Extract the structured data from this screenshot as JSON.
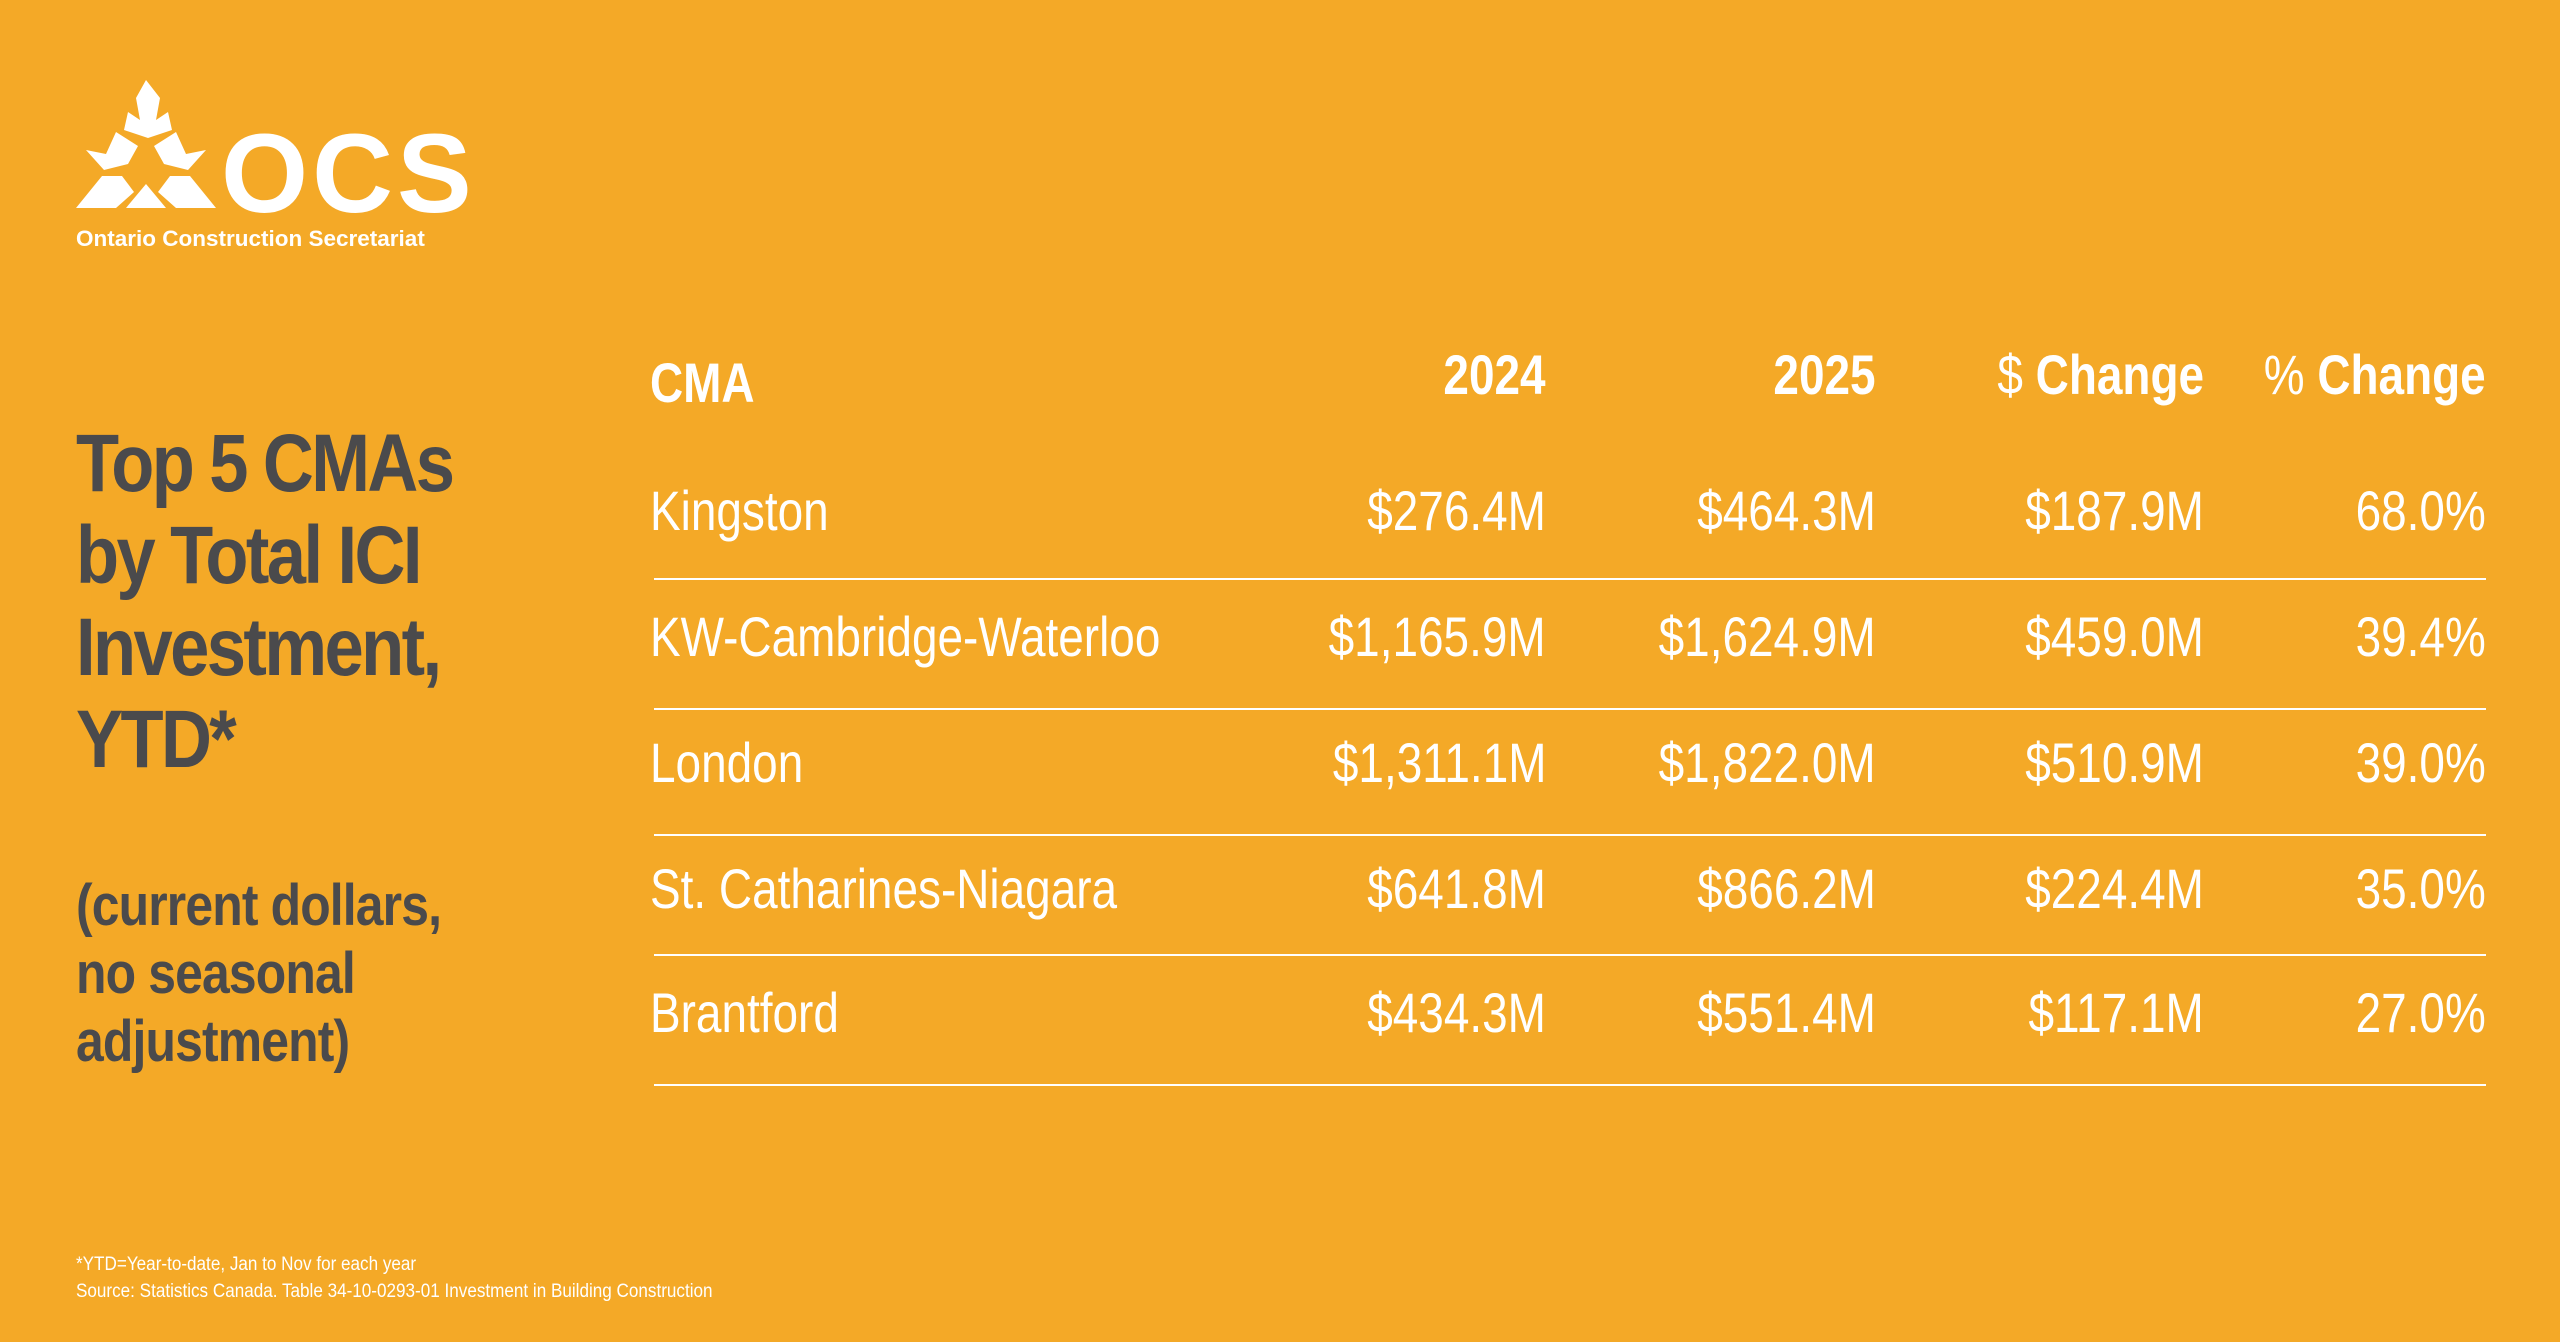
{
  "logo": {
    "name": "OCS",
    "subtitle": "Ontario Construction Secretariat"
  },
  "title": [
    "Top 5 CMAs",
    "by Total ICI",
    "Investment,",
    "YTD*"
  ],
  "subtitle": [
    "(current dollars,",
    "no seasonal",
    "adjustment)"
  ],
  "colors": {
    "background": "#F4A927",
    "text_dark": "#4A4A4C",
    "text_light": "#FFFFFF"
  },
  "chart_data": {
    "type": "table",
    "columns": [
      "CMA",
      "2024",
      "2025",
      "Change",
      "Change"
    ],
    "column_prefixes": [
      "",
      "",
      "",
      "$",
      "%"
    ],
    "rows": [
      [
        "Kingston",
        "$276.4M",
        "$464.3M",
        "$187.9M",
        "68.0%"
      ],
      [
        "KW-Cambridge-Waterloo",
        "$1,165.9M",
        "$1,624.9M",
        "$459.0M",
        "39.4%"
      ],
      [
        "London",
        "$1,311.1M",
        "$1,822.0M",
        "$510.9M",
        "39.0%"
      ],
      [
        "St. Catharines-Niagara",
        "$641.8M",
        "$866.2M",
        "$224.4M",
        "35.0%"
      ],
      [
        "Brantford",
        "$434.3M",
        "$551.4M",
        "$117.1M",
        "27.0%"
      ]
    ]
  },
  "footnotes": [
    "*YTD=Year-to-date, Jan to Nov for each year",
    "Source:  Statistics Canada. Table 34-10-0293-01  Investment in Building Construction"
  ]
}
